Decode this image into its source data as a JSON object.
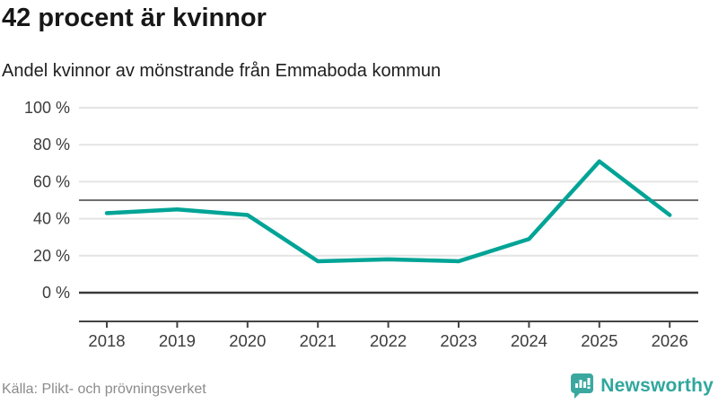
{
  "header": {
    "title": "42 procent är kvinnor",
    "subtitle": "Andel kvinnor av mönstrande från Emmaboda kommun"
  },
  "footer": {
    "source": "Källa: Plikt- och prövningsverket",
    "brand": "Newsworthy"
  },
  "colors": {
    "line": "#00a496",
    "grid": "#e4e4e4",
    "zero_line": "#3a3a3a",
    "axis": "#444444",
    "reference_line": "#6f6f6f",
    "tick_text": "#3c3c3c",
    "brand_teal": "#2fa79d",
    "icon_teal": "#3ba8a0"
  },
  "chart_data": {
    "type": "line",
    "title": "42 procent är kvinnor",
    "subtitle": "Andel kvinnor av mönstrande från Emmaboda kommun",
    "categories": [
      "2018",
      "2019",
      "2020",
      "2021",
      "2022",
      "2023",
      "2024",
      "2025",
      "2026"
    ],
    "series": [
      {
        "name": "Andel kvinnor av mönstrande",
        "values": [
          43,
          45,
          42,
          17,
          18,
          17,
          29,
          71,
          42
        ]
      }
    ],
    "unit": "%",
    "xlabel": "",
    "ylabel": "",
    "ylim": [
      0,
      100
    ],
    "y_ticks": [
      {
        "value": 100,
        "label": "100 %"
      },
      {
        "value": 80,
        "label": "80 %"
      },
      {
        "value": 60,
        "label": "60 %"
      },
      {
        "value": 40,
        "label": "40 %"
      },
      {
        "value": 20,
        "label": "20 %"
      },
      {
        "value": 0,
        "label": "0 %"
      }
    ],
    "reference_line": 50,
    "grid": "horizontal",
    "legend": "none"
  }
}
